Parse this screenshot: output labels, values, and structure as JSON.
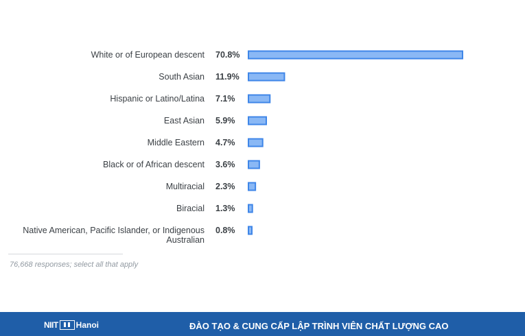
{
  "chart_data": {
    "type": "bar",
    "orientation": "horizontal",
    "categories": [
      "White or of European descent",
      "South Asian",
      "Hispanic or Latino/Latina",
      "East Asian",
      "Middle Eastern",
      "Black or of African descent",
      "Multiracial",
      "Biracial",
      "Native American, Pacific Islander, or Indigenous Australian"
    ],
    "values": [
      70.8,
      11.9,
      7.1,
      5.9,
      4.7,
      3.6,
      2.3,
      1.3,
      0.8
    ],
    "value_labels": [
      "70.8%",
      "11.9%",
      "7.1%",
      "5.9%",
      "4.7%",
      "3.6%",
      "2.3%",
      "1.3%",
      "0.8%"
    ],
    "xlim": [
      0,
      70.8
    ],
    "unit": "%",
    "grid": false,
    "legend": "none",
    "bar_color": "#8ab8f5",
    "bar_border_color": "#3f86e8"
  },
  "note": "76,668 responses; select all that apply",
  "footer": {
    "logo_niit": "NIIT",
    "logo_hanoi": "Hanoi",
    "tagline": "ĐÀO TẠO & CUNG CẤP LẬP TRÌNH VIÊN CHẤT LƯỢNG CAO",
    "background_color": "#1f5ea8"
  }
}
